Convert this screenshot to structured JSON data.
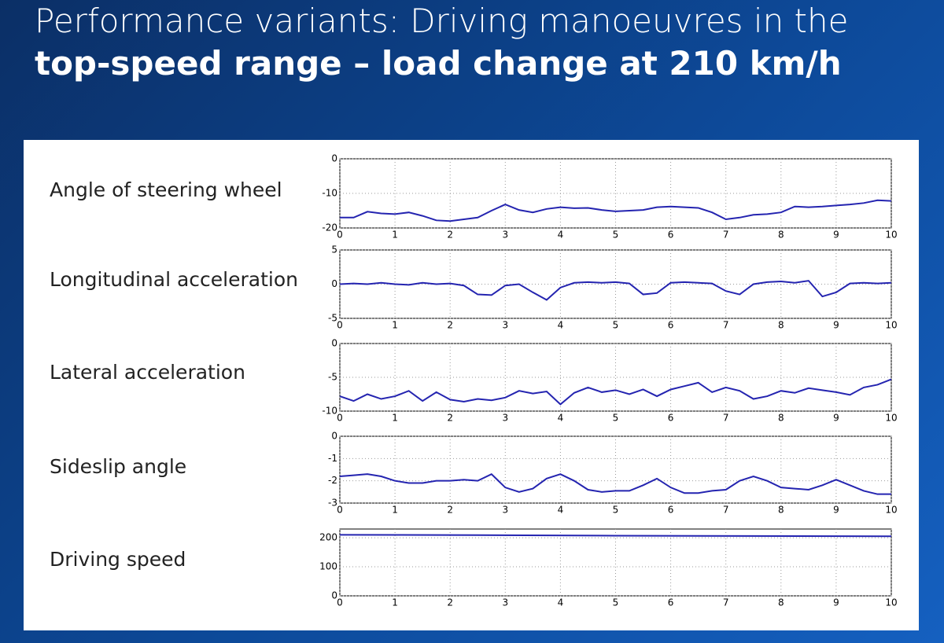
{
  "slide": {
    "title": "Performance variants: Driving manoeuvres in the",
    "subtitle": "top-speed range – load change at 210 km/h"
  },
  "chart_data": [
    {
      "type": "line",
      "ylabel": "Angle of steering wheel",
      "color": "#2424b0",
      "grid": true,
      "xlim": [
        0,
        10
      ],
      "xticks": [
        0,
        1,
        2,
        3,
        4,
        5,
        6,
        7,
        8,
        9,
        10
      ],
      "ylim": [
        -20,
        0
      ],
      "yticks": [
        -20,
        -10,
        0
      ],
      "x": [
        0,
        0.25,
        0.5,
        0.75,
        1,
        1.25,
        1.5,
        1.75,
        2,
        2.25,
        2.5,
        2.75,
        3,
        3.25,
        3.5,
        3.75,
        4,
        4.25,
        4.5,
        4.75,
        5,
        5.25,
        5.5,
        5.75,
        6,
        6.25,
        6.5,
        6.75,
        7,
        7.25,
        7.5,
        7.75,
        8,
        8.25,
        8.5,
        8.75,
        9,
        9.25,
        9.5,
        9.75,
        10
      ],
      "values": [
        -17,
        -17,
        -15.3,
        -15.8,
        -16,
        -15.5,
        -16.5,
        -17.8,
        -18,
        -17.5,
        -17,
        -15,
        -13.2,
        -14.8,
        -15.5,
        -14.5,
        -14,
        -14.3,
        -14.2,
        -14.8,
        -15.2,
        -15,
        -14.8,
        -14,
        -13.8,
        -14,
        -14.2,
        -15.5,
        -17.5,
        -17,
        -16.2,
        -16,
        -15.5,
        -13.8,
        -14,
        -13.8,
        -13.5,
        -13.2,
        -12.8,
        -12,
        -12.2
      ]
    },
    {
      "type": "line",
      "ylabel": "Longitudinal acceleration",
      "color": "#2424b0",
      "grid": true,
      "xlim": [
        0,
        10
      ],
      "xticks": [
        0,
        1,
        2,
        3,
        4,
        5,
        6,
        7,
        8,
        9,
        10
      ],
      "ylim": [
        -5,
        5
      ],
      "yticks": [
        -5,
        0,
        5
      ],
      "x": [
        0,
        0.25,
        0.5,
        0.75,
        1,
        1.25,
        1.5,
        1.75,
        2,
        2.25,
        2.5,
        2.75,
        3,
        3.25,
        3.5,
        3.75,
        4,
        4.25,
        4.5,
        4.75,
        5,
        5.25,
        5.5,
        5.75,
        6,
        6.25,
        6.5,
        6.75,
        7,
        7.25,
        7.5,
        7.75,
        8,
        8.25,
        8.5,
        8.75,
        9,
        9.25,
        9.5,
        9.75,
        10
      ],
      "values": [
        0,
        0.1,
        0,
        0.2,
        0,
        -0.1,
        0.2,
        0,
        0.1,
        -0.2,
        -1.5,
        -1.6,
        -0.2,
        0,
        -1.2,
        -2.3,
        -0.5,
        0.2,
        0.3,
        0.2,
        0.3,
        0.1,
        -1.5,
        -1.3,
        0.2,
        0.3,
        0.2,
        0.1,
        -1,
        -1.5,
        0,
        0.3,
        0.4,
        0.2,
        0.5,
        -1.8,
        -1.2,
        0.1,
        0.2,
        0.1,
        0.2
      ]
    },
    {
      "type": "line",
      "ylabel": "Lateral acceleration",
      "color": "#2424b0",
      "grid": true,
      "xlim": [
        0,
        10
      ],
      "xticks": [
        0,
        1,
        2,
        3,
        4,
        5,
        6,
        7,
        8,
        9,
        10
      ],
      "ylim": [
        -10,
        0
      ],
      "yticks": [
        -10,
        -5,
        0
      ],
      "x": [
        0,
        0.25,
        0.5,
        0.75,
        1,
        1.25,
        1.5,
        1.75,
        2,
        2.25,
        2.5,
        2.75,
        3,
        3.25,
        3.5,
        3.75,
        4,
        4.25,
        4.5,
        4.75,
        5,
        5.25,
        5.5,
        5.75,
        6,
        6.25,
        6.5,
        6.75,
        7,
        7.25,
        7.5,
        7.75,
        8,
        8.25,
        8.5,
        8.75,
        9,
        9.25,
        9.5,
        9.75,
        10
      ],
      "values": [
        -7.8,
        -8.5,
        -7.5,
        -8.2,
        -7.8,
        -7,
        -8.5,
        -7.2,
        -8.3,
        -8.6,
        -8.2,
        -8.4,
        -8,
        -7,
        -7.4,
        -7.1,
        -9,
        -7.3,
        -6.5,
        -7.2,
        -6.9,
        -7.5,
        -6.8,
        -7.8,
        -6.8,
        -6.3,
        -5.8,
        -7.2,
        -6.5,
        -7,
        -8.2,
        -7.8,
        -7,
        -7.3,
        -6.6,
        -6.9,
        -7.2,
        -7.6,
        -6.5,
        -6.1,
        -5.3
      ]
    },
    {
      "type": "line",
      "ylabel": "Sideslip angle",
      "color": "#2424b0",
      "grid": true,
      "xlim": [
        0,
        10
      ],
      "xticks": [
        0,
        1,
        2,
        3,
        4,
        5,
        6,
        7,
        8,
        9,
        10
      ],
      "ylim": [
        -3,
        0
      ],
      "yticks": [
        -3,
        -2,
        -1,
        0
      ],
      "x": [
        0,
        0.25,
        0.5,
        0.75,
        1,
        1.25,
        1.5,
        1.75,
        2,
        2.25,
        2.5,
        2.75,
        3,
        3.25,
        3.5,
        3.75,
        4,
        4.25,
        4.5,
        4.75,
        5,
        5.25,
        5.5,
        5.75,
        6,
        6.25,
        6.5,
        6.75,
        7,
        7.25,
        7.5,
        7.75,
        8,
        8.25,
        8.5,
        8.75,
        9,
        9.25,
        9.5,
        9.75,
        10
      ],
      "values": [
        -1.8,
        -1.75,
        -1.7,
        -1.8,
        -2,
        -2.1,
        -2.1,
        -2,
        -2,
        -1.95,
        -2,
        -1.7,
        -2.3,
        -2.5,
        -2.35,
        -1.9,
        -1.7,
        -2,
        -2.4,
        -2.5,
        -2.45,
        -2.45,
        -2.2,
        -1.9,
        -2.3,
        -2.55,
        -2.55,
        -2.45,
        -2.4,
        -2,
        -1.8,
        -2,
        -2.3,
        -2.35,
        -2.4,
        -2.2,
        -1.95,
        -2.2,
        -2.45,
        -2.6,
        -2.6
      ]
    },
    {
      "type": "line",
      "ylabel": "Driving speed",
      "color": "#2424b0",
      "grid": true,
      "xlim": [
        0,
        10
      ],
      "xticks": [
        0,
        1,
        2,
        3,
        4,
        5,
        6,
        7,
        8,
        9,
        10
      ],
      "ylim": [
        0,
        230
      ],
      "yticks": [
        0,
        100,
        200
      ],
      "x": [
        0,
        2.5,
        5,
        7.5,
        10
      ],
      "values": [
        210,
        209,
        207,
        206,
        205
      ]
    }
  ]
}
